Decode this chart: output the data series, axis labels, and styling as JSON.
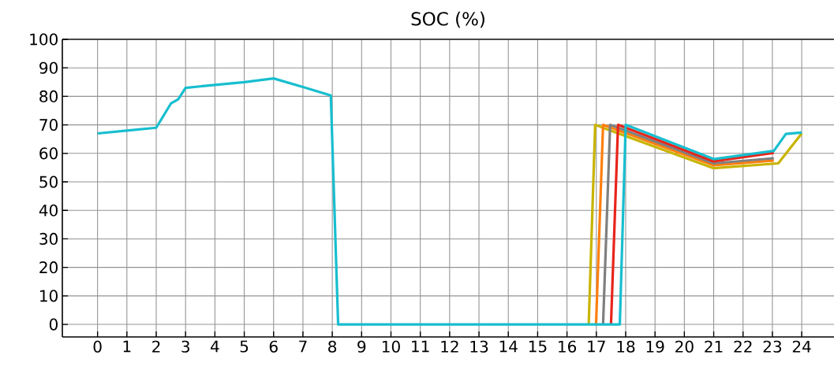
{
  "chart_data": {
    "type": "line",
    "title": "SOC (%)",
    "xlim": [
      -1.2,
      25.1
    ],
    "ylim": [
      -4.4,
      100
    ],
    "xticks": [
      0,
      1,
      2,
      3,
      4,
      5,
      6,
      7,
      8,
      9,
      10,
      11,
      12,
      13,
      14,
      15,
      16,
      17,
      18,
      19,
      20,
      21,
      22,
      23,
      24
    ],
    "yticks": [
      0,
      10,
      20,
      30,
      40,
      50,
      60,
      70,
      80,
      90,
      100
    ],
    "grid": true,
    "marker": "none",
    "line_style": "solid",
    "series": [
      {
        "color": "#c8b400",
        "x": [
          16.74,
          16.96,
          21,
          23.2,
          24
        ],
        "values": [
          0,
          70,
          54.8,
          56.5,
          67
        ]
      },
      {
        "color": "#ff7f0e",
        "x": [
          16.99,
          17.23,
          21,
          23.05
        ],
        "values": [
          0,
          70,
          55.8,
          57.5
        ]
      },
      {
        "color": "#7f7f7f",
        "x": [
          17.23,
          17.47,
          21,
          23.05
        ],
        "values": [
          0,
          70,
          56.5,
          58.3
        ]
      },
      {
        "color": "#e8241a",
        "x": [
          17.5,
          17.74,
          21,
          23.05
        ],
        "values": [
          0,
          70,
          57.2,
          60.2
        ]
      },
      {
        "color": "#17becf",
        "x": [
          0,
          1,
          2,
          2.5,
          2.75,
          3,
          4,
          5,
          6,
          7,
          7.95,
          8.2,
          17.8,
          18.0,
          21,
          23.05,
          23.46,
          24
        ],
        "values": [
          67,
          68,
          69,
          77.5,
          79,
          83,
          84,
          85,
          86.3,
          83.3,
          80.3,
          0,
          0,
          70,
          58,
          60.9,
          66.8,
          67.3
        ]
      }
    ]
  }
}
